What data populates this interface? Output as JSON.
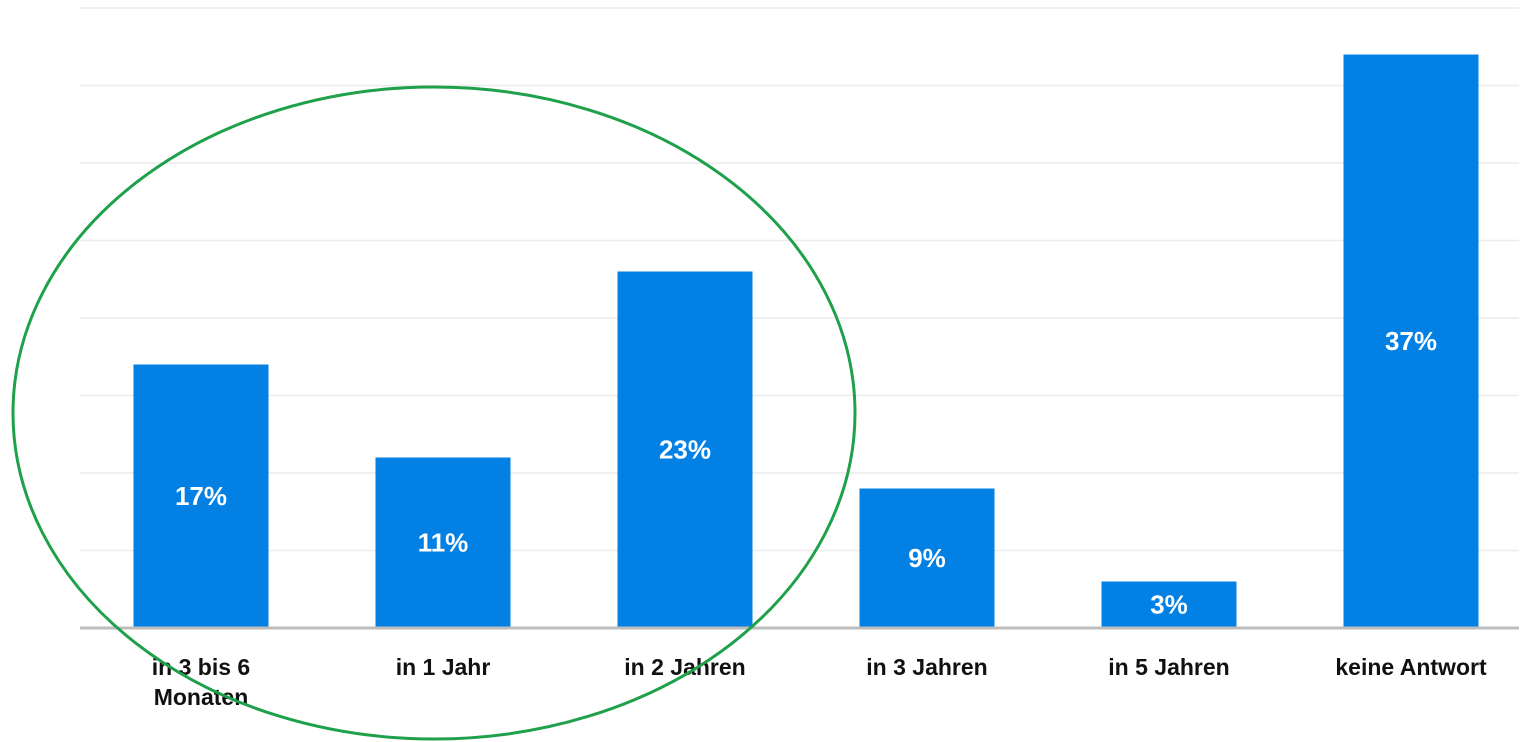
{
  "chart_data": {
    "type": "bar",
    "categories": [
      "in 3 bis 6 Monaten",
      "in 1 Jahr",
      "in 2 Jahren",
      "in 3 Jahren",
      "in 5 Jahren",
      "keine Antwort"
    ],
    "values": [
      17,
      11,
      23,
      9,
      3,
      37
    ],
    "value_labels": [
      "17%",
      "11%",
      "23%",
      "9%",
      "3%",
      "37%"
    ],
    "color": "#0380e3",
    "ylim": [
      0,
      40
    ],
    "yticks": [
      0,
      5,
      10,
      15,
      20,
      25,
      30,
      35,
      40
    ],
    "grid": true
  }
}
